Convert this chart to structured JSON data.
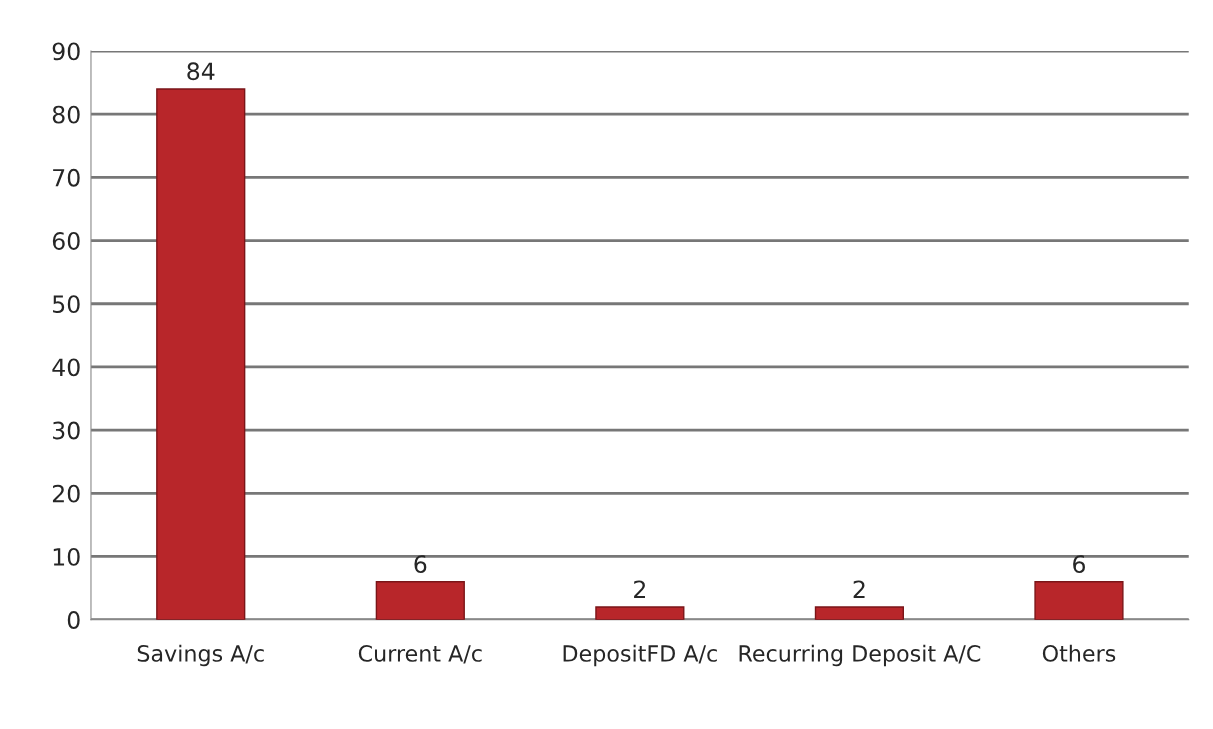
{
  "chart_data": {
    "type": "bar",
    "categories": [
      "Savings A/c",
      "Current A/c",
      "DepositFD A/c",
      "Recurring Deposit A/C",
      "Others"
    ],
    "series": [
      {
        "color": "#b8262a",
        "values": [
          84,
          6,
          2,
          2,
          6
        ]
      }
    ],
    "ylim": [
      0,
      90
    ],
    "yticks": [
      0,
      10,
      20,
      30,
      40,
      50,
      60,
      70,
      80,
      90
    ],
    "grid": "y",
    "data_labels": true
  }
}
